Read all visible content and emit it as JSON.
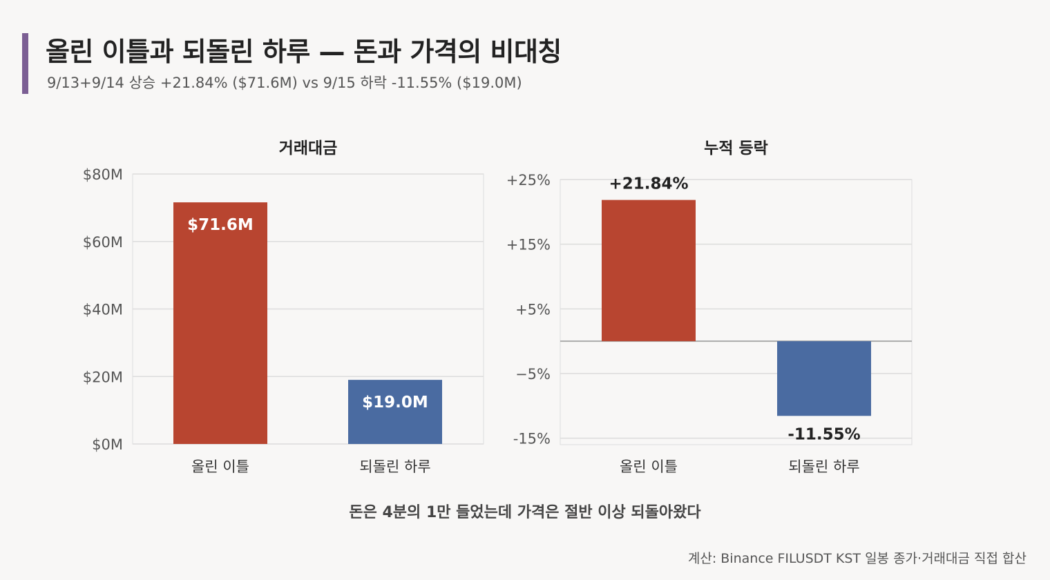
{
  "title": "올린 이틀과 되돌린 하루 — 돈과 가격의 비대칭",
  "subtitle": "9/13+9/14 상승 +21.84% ($71.6M) vs 9/15 하락 -11.55% ($19.0M)",
  "caption": "돈은 4분의 1만 들었는데 가격은 절반 이상 되돌아왔다",
  "source": "계산: Binance FILUSDT KST 일봉 종가·거래대금 직접 합산",
  "colors": {
    "accent": "#7b5e93",
    "up": "#b84530",
    "down": "#4a6ba1"
  },
  "chart_data": [
    {
      "type": "bar",
      "title": "거래대금",
      "categories": [
        "올린 이틀",
        "되돌린 하루"
      ],
      "values": [
        71.6,
        19.0
      ],
      "data_labels": [
        "$71.6M",
        "$19.0M"
      ],
      "ylim": [
        0,
        80
      ],
      "yticks": [
        0,
        20,
        40,
        60,
        80
      ],
      "ytick_labels": [
        "$0M",
        "$20M",
        "$40M",
        "$60M",
        "$80M"
      ],
      "grid": true
    },
    {
      "type": "bar",
      "title": "누적 등락",
      "categories": [
        "올린 이틀",
        "되돌린 하루"
      ],
      "values": [
        21.84,
        -11.55
      ],
      "data_labels": [
        "+21.84%",
        "-11.55%"
      ],
      "ylim": [
        -16,
        25
      ],
      "yticks": [
        -15,
        -5,
        5,
        15,
        25
      ],
      "ytick_labels": [
        "-15%",
        "−5%",
        "+5%",
        "+15%",
        "+25%"
      ],
      "grid": true
    }
  ]
}
